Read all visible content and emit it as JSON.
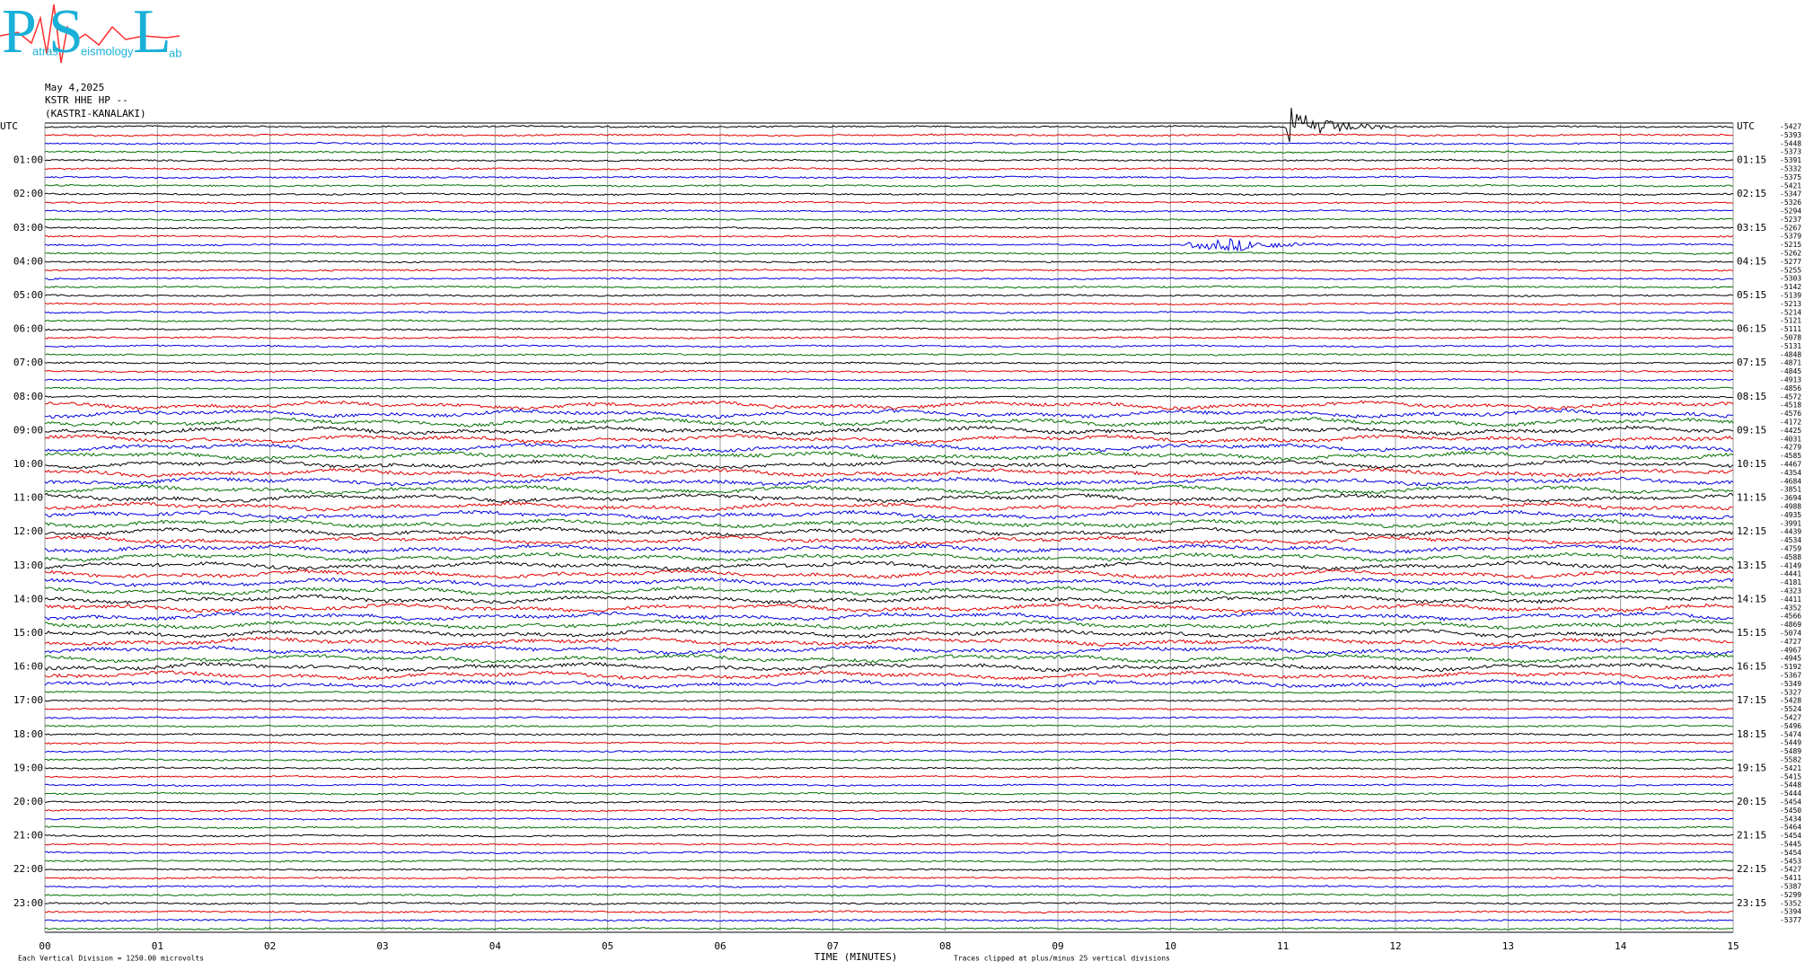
{
  "logo": {
    "initials": [
      "P",
      "S",
      "L"
    ],
    "words": [
      "atras",
      "eismology",
      "ab"
    ]
  },
  "header": {
    "date": "May 4,2025",
    "station": "KSTR HHE HP --",
    "location": "(KASTRI-KANALAKI)"
  },
  "helicorder": {
    "left_labels": [
      "UTC",
      "01:00",
      "02:00",
      "03:00",
      "04:00",
      "05:00",
      "06:00",
      "07:00",
      "08:00",
      "09:00",
      "10:00",
      "11:00",
      "12:00",
      "13:00",
      "14:00",
      "15:00",
      "16:00",
      "17:00",
      "18:00",
      "19:00",
      "20:00",
      "21:00",
      "22:00",
      "23:00"
    ],
    "right_labels": [
      "UTC",
      "01:15",
      "02:15",
      "03:15",
      "04:15",
      "05:15",
      "06:15",
      "07:15",
      "08:15",
      "09:15",
      "10:15",
      "11:15",
      "12:15",
      "13:15",
      "14:15",
      "15:15",
      "16:15",
      "17:15",
      "18:15",
      "19:15",
      "20:15",
      "21:15",
      "22:15",
      "23:15"
    ],
    "trace_values": [
      -5427,
      -5393,
      -5448,
      -5373,
      -5391,
      -5332,
      -5375,
      -5421,
      -5347,
      -5326,
      -5294,
      -5237,
      -5267,
      -5379,
      -5215,
      -5262,
      -5277,
      -5255,
      -5303,
      -5142,
      -5139,
      -5213,
      -5214,
      -5121,
      -5111,
      -5078,
      -5131,
      -4848,
      -4871,
      -4845,
      -4913,
      -4856,
      -4572,
      -4518,
      -4576,
      -4172,
      -4425,
      -4031,
      -4279,
      -4585,
      -4467,
      -4354,
      -4684,
      -3851,
      -3694,
      -4988,
      -4935,
      -3991,
      -4439,
      -4534,
      -4759,
      -4588,
      -4149,
      -4441,
      -4181,
      -4323,
      -4411,
      -4352,
      -4566,
      -4869,
      -5074,
      -4727,
      -4967,
      -4945,
      -5192,
      -5367,
      -5349,
      -5327,
      -5428,
      -5524,
      -5427,
      -5496,
      -5474,
      -5449,
      -5489,
      -5582,
      -5421,
      -5415,
      -5448,
      -5444,
      -5454,
      -5450,
      -5434,
      -5464,
      -5454,
      -5445,
      -5454,
      -5453,
      -5427,
      -5411,
      -5387,
      -5299,
      -5352,
      -5394,
      -5377
    ],
    "trace_colors": [
      "#000000",
      "#e00000",
      "#0000e0",
      "#007000"
    ],
    "xlim": [
      0,
      15
    ],
    "xticks": [
      {
        "value": 0,
        "label": "00"
      },
      {
        "value": 1,
        "label": "01"
      },
      {
        "value": 2,
        "label": "02"
      },
      {
        "value": 3,
        "label": "03"
      },
      {
        "value": 4,
        "label": "04"
      },
      {
        "value": 5,
        "label": "05"
      },
      {
        "value": 6,
        "label": "06"
      },
      {
        "value": 7,
        "label": "07"
      },
      {
        "value": 8,
        "label": "08"
      },
      {
        "value": 9,
        "label": "09"
      },
      10,
      11,
      12,
      13,
      14,
      15
    ],
    "xlabel": "TIME (MINUTES)",
    "scale_note": "Each Vertical Division = 1250.00 microvolts",
    "clip_note": "Traces clipped at plus/minus 25 vertical divisions"
  }
}
